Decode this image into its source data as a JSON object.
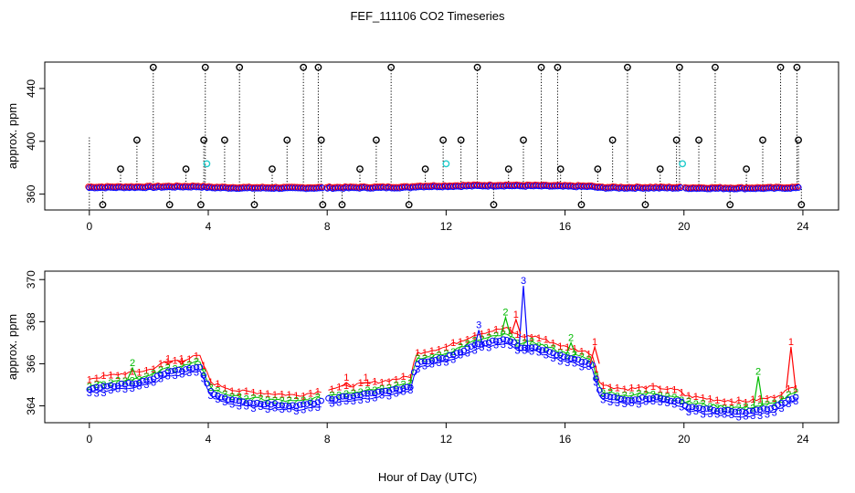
{
  "chart_data": [
    {
      "type": "scatter",
      "title": "FEF_111106  CO2 Timeseries",
      "ylabel": "approx. ppm",
      "xlabel": "",
      "xlim": [
        -1.5,
        25.2
      ],
      "ylim": [
        348,
        460
      ],
      "xticks": [
        "0",
        "4",
        "8",
        "12",
        "16",
        "20",
        "24"
      ],
      "yticks": [
        "360",
        "400",
        "440"
      ],
      "grid": false,
      "series": [
        {
          "name": "flagged excursions (black open circles)",
          "color": "#000000",
          "x": [
            0.45,
            1.05,
            1.6,
            2.15,
            2.7,
            3.25,
            3.75,
            3.85,
            3.9,
            4.55,
            5.05,
            5.55,
            6.15,
            6.65,
            7.2,
            7.7,
            7.8,
            7.85,
            8.5,
            9.1,
            9.65,
            10.15,
            10.75,
            11.3,
            11.9,
            12.5,
            13.05,
            13.6,
            14.1,
            14.6,
            15.2,
            15.75,
            15.85,
            16.55,
            17.1,
            17.6,
            18.1,
            18.7,
            19.2,
            19.75,
            19.85,
            20.5,
            21.05,
            21.55,
            22.1,
            22.65,
            23.25,
            23.8,
            23.85,
            23.95
          ],
          "y": [
            352,
            379,
            401,
            456,
            352,
            379,
            352,
            401,
            456,
            401,
            456,
            352,
            379,
            401,
            456,
            456,
            401,
            352,
            352,
            379,
            401,
            456,
            352,
            379,
            401,
            401,
            456,
            352,
            379,
            401,
            456,
            456,
            379,
            352,
            379,
            401,
            456,
            352,
            379,
            401,
            456,
            401,
            456,
            352,
            379,
            401,
            456,
            456,
            401,
            352
          ]
        },
        {
          "name": "cyan markers",
          "color": "#22cccc",
          "x": [
            3.95,
            12.0,
            19.95
          ],
          "y": [
            383,
            383,
            383
          ]
        },
        {
          "name": "baseline series",
          "color": "#0000ff",
          "level_ppm": 365
        }
      ]
    },
    {
      "type": "scatter",
      "title": "",
      "ylabel": "approx. ppm",
      "xlabel": "Hour of Day (UTC)",
      "xlim": [
        -1.5,
        25.2
      ],
      "ylim": [
        363.2,
        370.4
      ],
      "xticks": [
        "0",
        "4",
        "8",
        "12",
        "16",
        "20",
        "24"
      ],
      "yticks": [
        "364",
        "366",
        "368",
        "370"
      ],
      "grid": false,
      "series": [
        {
          "name": "1",
          "color": "#ff0000",
          "marker": "1",
          "offset_ppm": 0.5
        },
        {
          "name": "2",
          "color": "#00bb00",
          "marker": "2",
          "offset_ppm": 0.2
        },
        {
          "name": "3",
          "color": "#0000ff",
          "marker": "3",
          "offset_ppm": -0.2
        },
        {
          "name": "open circles",
          "color": "#0000ff",
          "marker": "o",
          "offset_ppm": 0.0
        }
      ],
      "profile": {
        "x": [
          0.0,
          1.0,
          2.0,
          2.6,
          3.2,
          3.7,
          4.1,
          5.0,
          6.0,
          7.0,
          7.8,
          8.0,
          9.0,
          10.0,
          10.8,
          11.0,
          12.0,
          13.0,
          14.0,
          14.5,
          15.0,
          16.0,
          16.9,
          17.2,
          18.0,
          19.0,
          19.9,
          20.0,
          21.0,
          22.0,
          23.0,
          23.7
        ],
        "y": [
          364.8,
          365.0,
          365.2,
          365.6,
          365.7,
          365.9,
          364.6,
          364.2,
          364.1,
          364.0,
          364.2,
          364.3,
          364.5,
          364.7,
          364.9,
          366.0,
          366.3,
          366.9,
          367.2,
          366.8,
          366.8,
          366.3,
          366.0,
          364.5,
          364.3,
          364.4,
          364.2,
          364.0,
          363.8,
          363.7,
          363.9,
          364.4
        ]
      },
      "spikes": [
        {
          "series": "1",
          "x": 2.65,
          "y": 366.0
        },
        {
          "series": "1",
          "x": 3.1,
          "y": 366.0
        },
        {
          "series": "2",
          "x": 1.45,
          "y": 365.8
        },
        {
          "series": "1",
          "x": 8.65,
          "y": 365.1
        },
        {
          "series": "1",
          "x": 9.3,
          "y": 365.1
        },
        {
          "series": "3",
          "x": 13.1,
          "y": 367.6
        },
        {
          "series": "2",
          "x": 14.0,
          "y": 368.2
        },
        {
          "series": "3",
          "x": 14.6,
          "y": 369.7
        },
        {
          "series": "1",
          "x": 14.35,
          "y": 368.1
        },
        {
          "series": "2",
          "x": 16.2,
          "y": 367.0
        },
        {
          "series": "1",
          "x": 17.0,
          "y": 366.8
        },
        {
          "series": "2",
          "x": 22.5,
          "y": 365.4
        },
        {
          "series": "1",
          "x": 23.6,
          "y": 366.8
        }
      ]
    }
  ]
}
